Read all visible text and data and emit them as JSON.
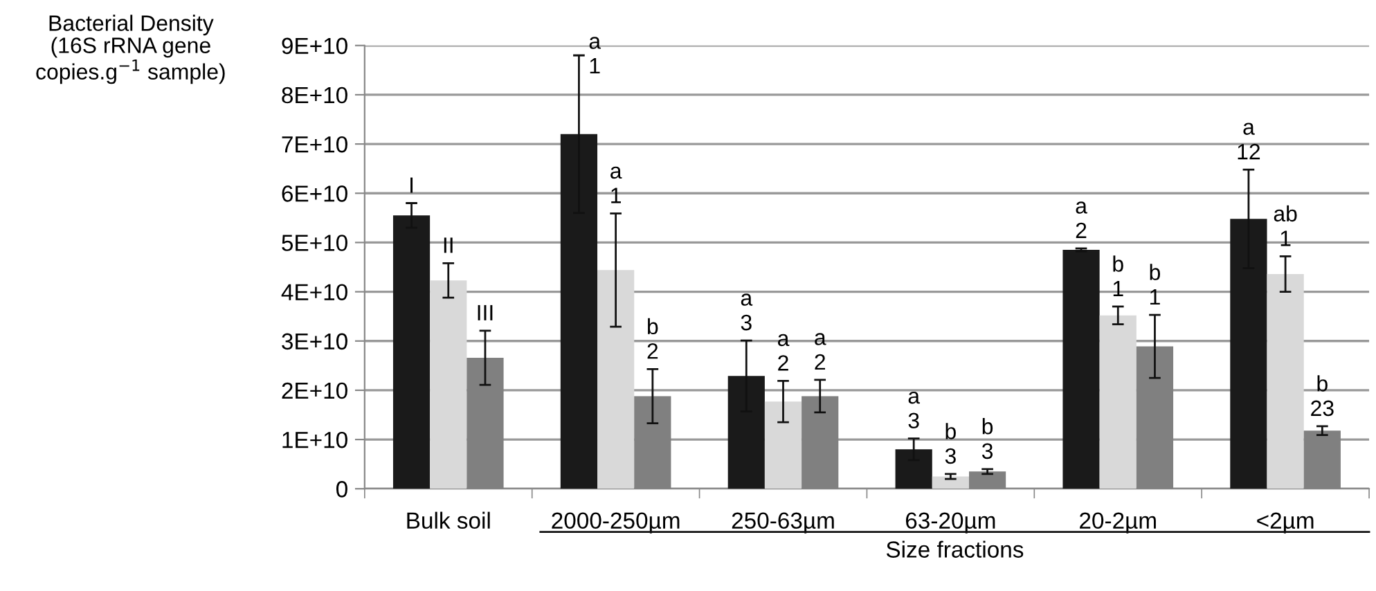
{
  "chart_data": {
    "type": "bar",
    "ylabel": "Bacterial Density\n(16S rRNA gene\ncopies.g$^{−1}$ sample)",
    "xlabel": "Size fractions",
    "categories": [
      "Bulk soil",
      "2000-250µm",
      "250-63µm",
      "63-20µm",
      "20-2µm",
      "<2µm"
    ],
    "series": [
      {
        "color": "#1a1a1a",
        "values": [
          55500000000.0,
          72000000000.0,
          22900000000.0,
          8000000000.0,
          48500000000.0,
          54800000000.0
        ],
        "errors": [
          2500000000.0,
          16000000000.0,
          7200000000.0,
          2200000000.0,
          300000000.0,
          10000000000.0
        ],
        "value_labels": [
          "I",
          "a\n1",
          "a\n3",
          "a\n3",
          "a\n2",
          "a\n12"
        ]
      },
      {
        "color": "#d9d9d9",
        "values": [
          42300000000.0,
          44400000000.0,
          17700000000.0,
          2500000000.0,
          35200000000.0,
          43600000000.0
        ],
        "errors": [
          3500000000.0,
          11500000000.0,
          4200000000.0,
          500000000.0,
          1800000000.0,
          3600000000.0
        ],
        "value_labels": [
          "II",
          "a\n1",
          "a\n2",
          "b\n3",
          "b\n1",
          "ab\n1"
        ]
      },
      {
        "color": "#808080",
        "values": [
          26600000000.0,
          18800000000.0,
          18800000000.0,
          3500000000.0,
          28900000000.0,
          11800000000.0
        ],
        "errors": [
          5500000000.0,
          5500000000.0,
          3300000000.0,
          500000000.0,
          6400000000.0,
          900000000.0
        ],
        "value_labels": [
          "III",
          "b\n2",
          "a\n2",
          "b\n3",
          "b\n1",
          "b\n23"
        ]
      }
    ],
    "ylim": [
      0,
      90000000000.0
    ],
    "yticks": [
      0,
      {
        "value": 10000000000.0,
        "label": "1E+10"
      },
      {
        "value": 20000000000.0,
        "label": "2E+10"
      },
      {
        "value": 30000000000.0,
        "label": "3E+10"
      },
      {
        "value": 40000000000.0,
        "label": "4E+10"
      },
      {
        "value": 50000000000.0,
        "label": "5E+10"
      },
      {
        "value": 60000000000.0,
        "label": "6E+10"
      },
      {
        "value": 70000000000.0,
        "label": "7E+10"
      },
      {
        "value": 80000000000.0,
        "label": "8E+10"
      },
      {
        "value": 90000000000.0,
        "label": "9E+10"
      }
    ],
    "grid": "y",
    "legend": false
  }
}
